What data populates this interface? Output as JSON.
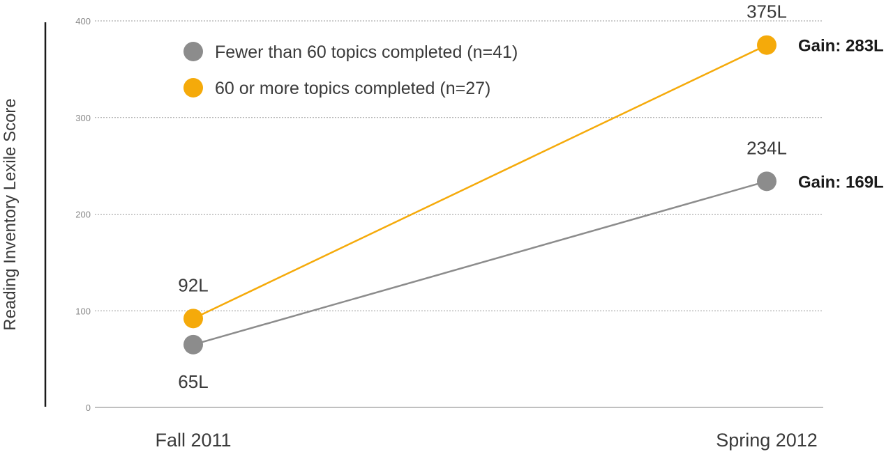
{
  "chart_data": {
    "type": "line",
    "title": "",
    "xlabel": "",
    "ylabel": "Reading Inventory Lexile Score",
    "categories": [
      "Fall 2011",
      "Spring 2012"
    ],
    "ylim": [
      0,
      400
    ],
    "yticks": [
      0,
      100,
      200,
      300,
      400
    ],
    "grid": true,
    "legend_position": "top-left",
    "series": [
      {
        "name": "Fewer than 60 topics completed (n=41)",
        "color": "#8c8c8c",
        "values": [
          65,
          234
        ],
        "labels": [
          "65L",
          "234L"
        ],
        "gain_label": "Gain: 169L"
      },
      {
        "name": "60 or more topics completed (n=27)",
        "color": "#f5aa0a",
        "values": [
          92,
          375
        ],
        "labels": [
          "92L",
          "375L"
        ],
        "gain_label": "Gain: 283L"
      }
    ]
  }
}
